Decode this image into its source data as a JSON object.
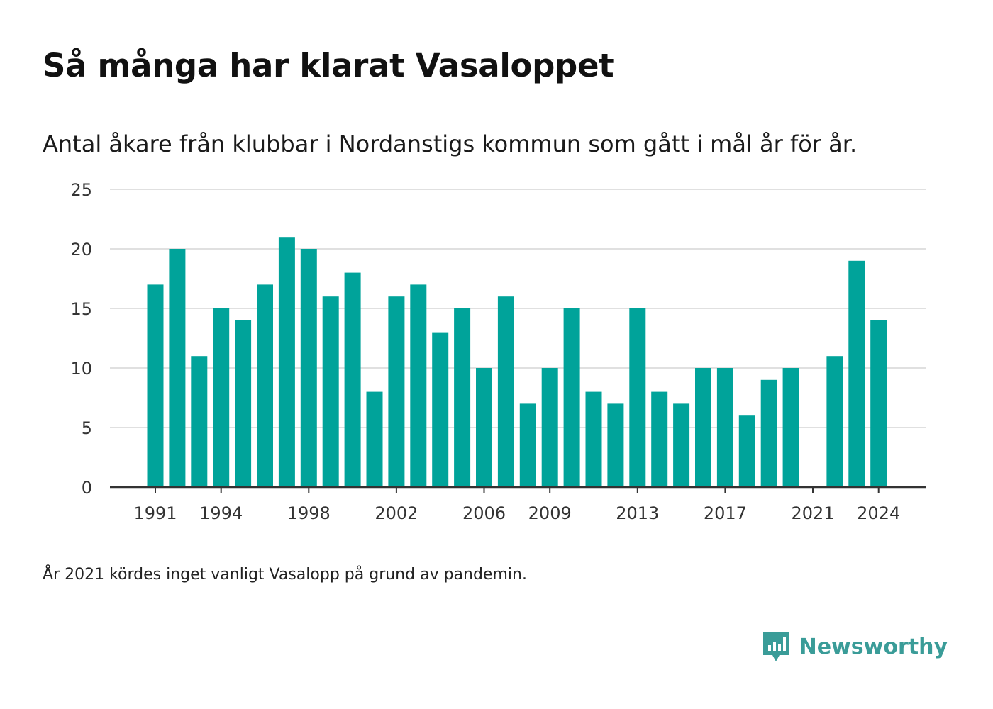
{
  "title": "Så många har klarat Vasaloppet",
  "subtitle": "Antal åkare från klubbar i Nordanstigs kommun som gått i mål år för år.",
  "footnote": "År 2021 kördes inget vanligt Vasalopp på grund av pandemin.",
  "brand": {
    "name": "Newsworthy",
    "icon": "newsworthy-logo-icon"
  },
  "colors": {
    "bar": "#00a39a",
    "grid": "#e0e0e0",
    "axis": "#333333",
    "brand": "#3a9c98"
  },
  "chart_data": {
    "type": "bar",
    "title": "",
    "xlabel": "",
    "ylabel": "",
    "ylim": [
      0,
      25
    ],
    "yticks": [
      0,
      5,
      10,
      15,
      20,
      25
    ],
    "grid": true,
    "xtick_labels": [
      "1991",
      "1994",
      "1998",
      "2002",
      "2006",
      "2009",
      "2013",
      "2017",
      "2021",
      "2024"
    ],
    "categories": [
      "1991",
      "1992",
      "1993",
      "1994",
      "1995",
      "1996",
      "1997",
      "1998",
      "1999",
      "2000",
      "2001",
      "2002",
      "2003",
      "2004",
      "2005",
      "2006",
      "2007",
      "2008",
      "2009",
      "2010",
      "2011",
      "2012",
      "2013",
      "2014",
      "2015",
      "2016",
      "2017",
      "2018",
      "2019",
      "2020",
      "2021",
      "2022",
      "2023",
      "2024"
    ],
    "values": [
      17,
      20,
      11,
      15,
      14,
      17,
      21,
      20,
      16,
      18,
      8,
      16,
      17,
      13,
      15,
      10,
      16,
      7,
      10,
      15,
      8,
      7,
      15,
      8,
      7,
      10,
      10,
      6,
      9,
      10,
      0,
      11,
      19,
      14
    ]
  }
}
